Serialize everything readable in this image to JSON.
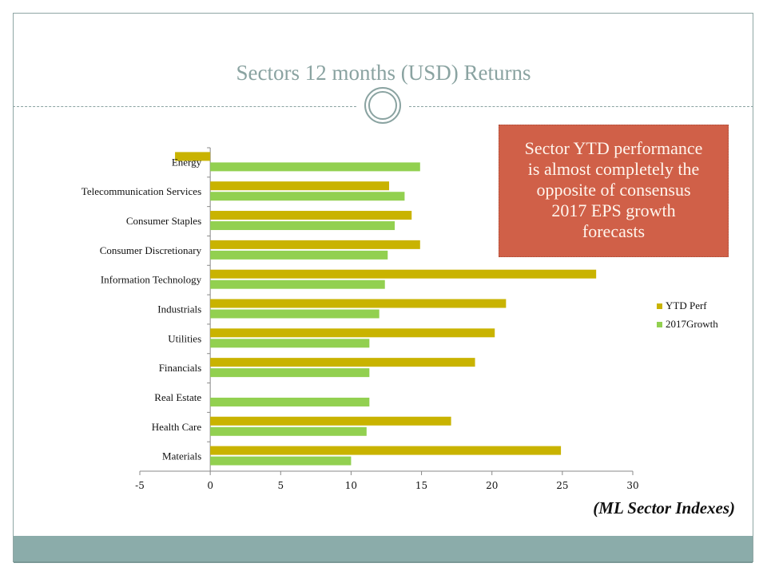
{
  "slide": {
    "title": "Sectors  12 months (USD) Returns",
    "callout": [
      "Sector YTD performance",
      "is almost completely the",
      "opposite of consensus",
      "2017 EPS growth",
      "forecasts"
    ],
    "source_note": "(ML Sector Indexes)",
    "colors": {
      "accent": "#8aa3a1",
      "callout_bg": "#d06048",
      "band": "#8bacaa"
    }
  },
  "chart_data": {
    "type": "bar",
    "orientation": "horizontal",
    "title": "",
    "xlabel": "",
    "ylabel": "",
    "categories": [
      "Energy",
      "Telecommunication Services",
      "Consumer Staples",
      "Consumer Discretionary",
      "Information Technology",
      "Industrials",
      "Utilities",
      "Financials",
      "Real Estate",
      "Health Care",
      "Materials"
    ],
    "series": [
      {
        "name": "YTD Perf",
        "color": "#c9b300",
        "values": [
          -2.5,
          12.7,
          14.3,
          14.9,
          27.4,
          21.0,
          20.2,
          18.8,
          null,
          17.1,
          24.9
        ]
      },
      {
        "name": "2017Growth",
        "color": "#92d050",
        "values": [
          14.9,
          13.8,
          13.1,
          12.6,
          12.4,
          12.0,
          11.3,
          11.3,
          11.3,
          11.1,
          10.0
        ]
      }
    ],
    "xlim": [
      -5,
      30
    ],
    "xticks": [
      -5,
      0,
      5,
      10,
      15,
      20,
      25,
      30
    ],
    "grid": false,
    "legend_position": "right"
  }
}
